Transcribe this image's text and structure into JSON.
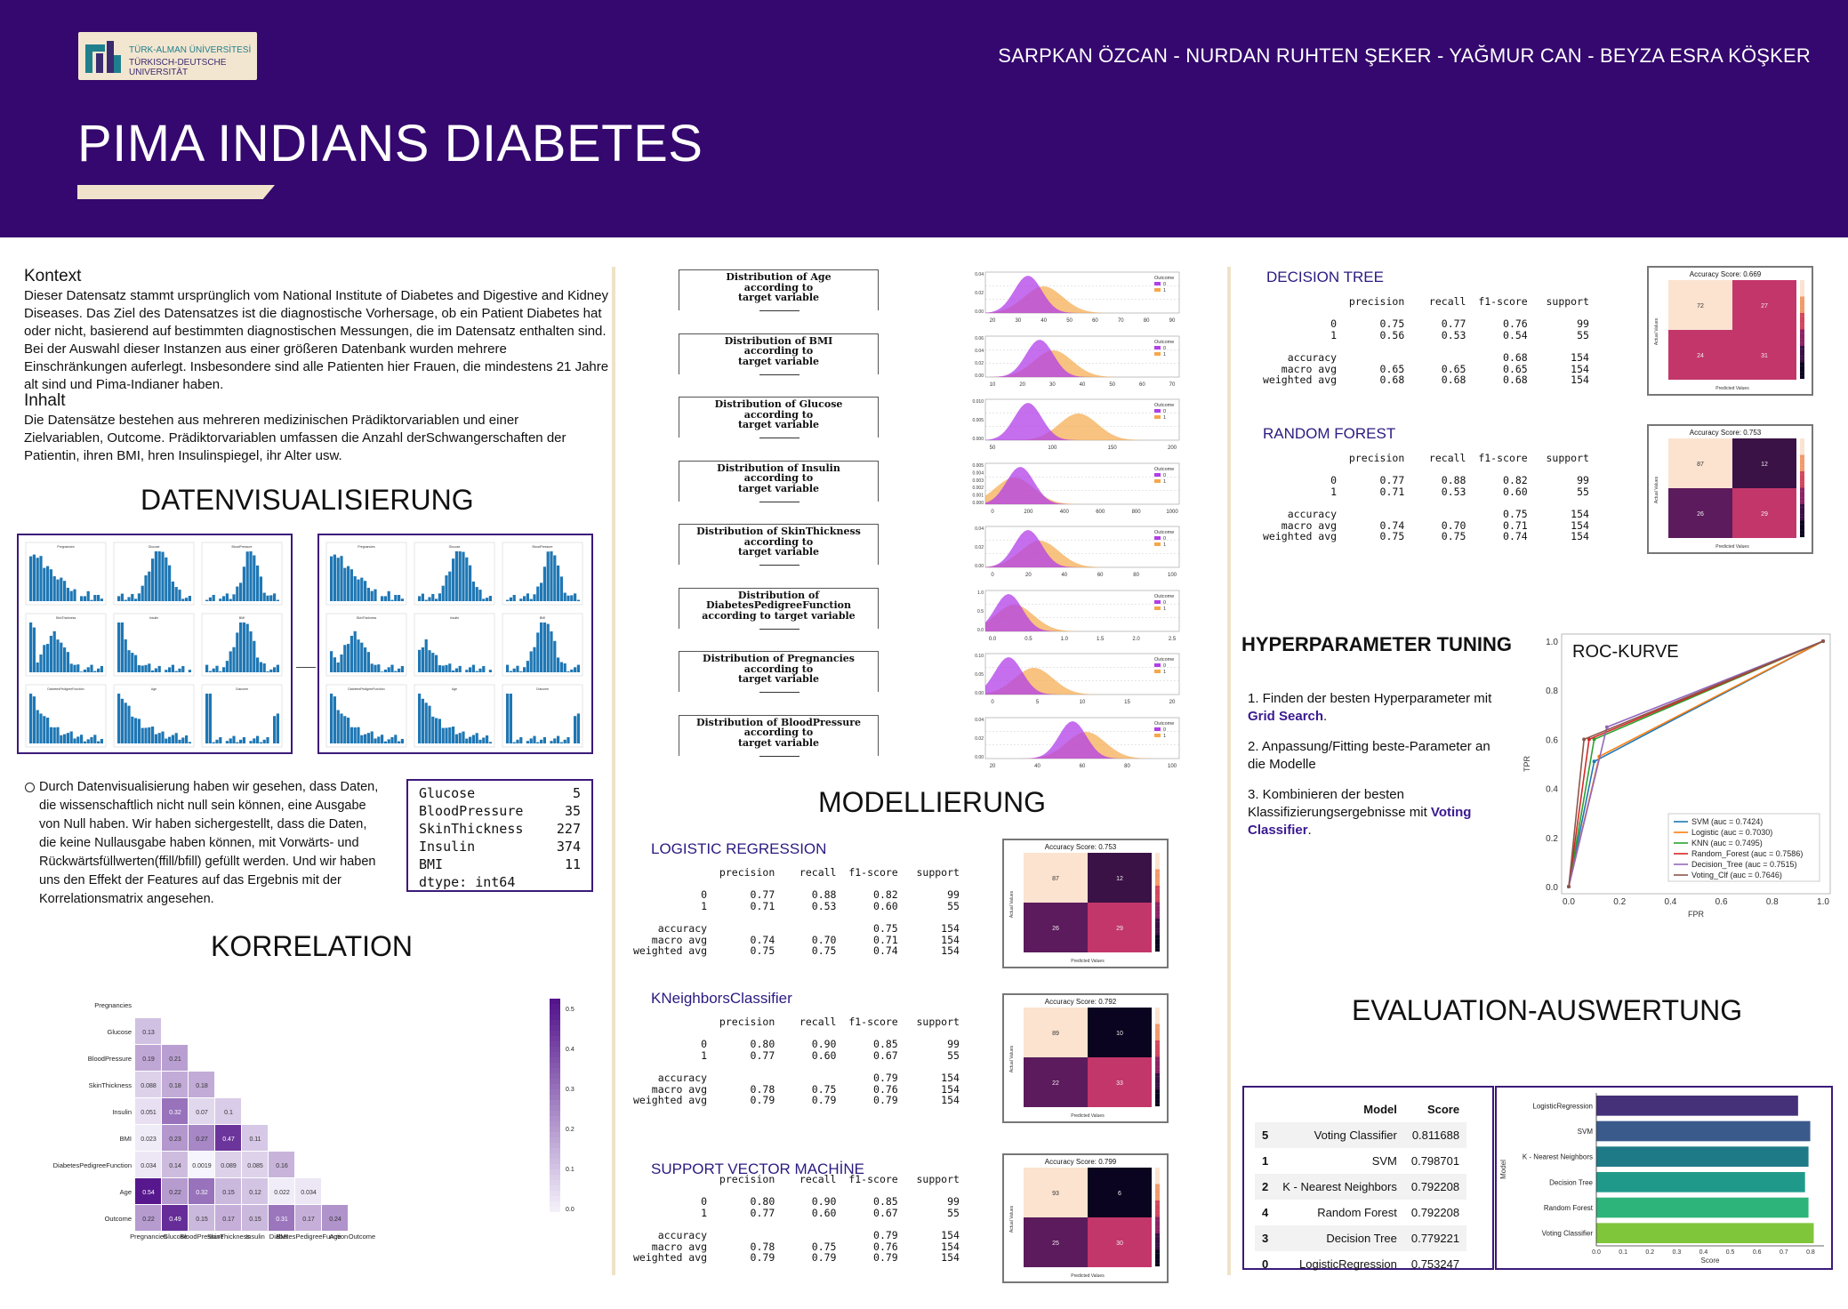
{
  "header": {
    "logo": {
      "line1": "TÜRK-ALMAN ÜNİVERSİTESİ",
      "line2": "TÜRKISCH-DEUTSCHE UNIVERSITÄT"
    },
    "authors": "SARPKAN ÖZCAN - NURDAN RUHTEN ŞEKER - YAĞMUR CAN - BEYZA ESRA KÖŞKER",
    "title": "PIMA INDIANS DIABETES"
  },
  "left": {
    "kontext_title": "Kontext",
    "kontext_text": "Dieser Datensatz stammt ursprünglich vom National Institute of Diabetes and Digestive and Kidney Diseases. Das Ziel des Datensatzes ist die diagnostische Vorhersage, ob ein Patient Diabetes hat oder nicht, basierend auf bestimmten diagnostischen Messungen, die im Datensatz enthalten sind. Bei der Auswahl dieser Instanzen aus einer größeren Datenbank wurden mehrere Einschränkungen auferlegt. Insbesondere sind alle Patienten hier Frauen, die mindestens 21 Jahre alt sind und Pima-Indianer haben.",
    "inhalt_title": "Inhalt",
    "inhalt_text": "Die Datensätze bestehen aus mehreren medizinischen Prädiktorvariablen und einer Zielvariablen, Outcome. Prädiktorvariablen umfassen die Anzahl derSchwangerschaften der Patientin, ihren BMI, hren Insulinspiegel, ihr Alter usw.",
    "datenvis_title": "DATENVISUALISIERUNG",
    "bullet_text": "Durch Datenvisualisierung haben wir gesehen, dass Daten, die wissenschaftlich nicht null sein können, eine Ausgabe von Null haben. Wir haben sichergestellt, dass die Daten, die keine Nullausgabe haben können, mit Vorwärts- und Rückwärtsfüllwerten(ffill/bfill) gefüllt werden. Und wir haben uns den Effekt der Features auf das Ergebnis mit der Korrelationsmatrix angesehen.",
    "nullcounts": [
      [
        "Glucose",
        "5"
      ],
      [
        "BloodPressure",
        "35"
      ],
      [
        "SkinThickness",
        "227"
      ],
      [
        "Insulin",
        "374"
      ],
      [
        "BMI",
        "11"
      ]
    ],
    "dtype": "dtype: int64",
    "korrelation_title": "KORRELATION"
  },
  "corr": {
    "labels": [
      "Pregnancies",
      "Glucose",
      "BloodPressure",
      "SkinThickness",
      "Insulin",
      "BMI",
      "DiabetesPedigreeFunction",
      "Age",
      "Outcome"
    ],
    "rows": [
      [],
      [
        "0.13"
      ],
      [
        "0.19",
        "0.21"
      ],
      [
        "0.088",
        "0.18",
        "0.18"
      ],
      [
        "0.051",
        "0.32",
        "0.07",
        "0.1"
      ],
      [
        "0.023",
        "0.23",
        "0.27",
        "0.47",
        "0.11"
      ],
      [
        "0.034",
        "0.14",
        "0.0019",
        "0.089",
        "0.085",
        "0.16"
      ],
      [
        "0.54",
        "0.22",
        "0.32",
        "0.15",
        "0.12",
        "0.022",
        "0.034"
      ],
      [
        "0.22",
        "0.49",
        "0.15",
        "0.17",
        "0.15",
        "0.31",
        "0.17",
        "0.24"
      ]
    ],
    "values": [
      [],
      [
        0.13
      ],
      [
        0.19,
        0.21
      ],
      [
        0.088,
        0.18,
        0.18
      ],
      [
        0.051,
        0.32,
        0.07,
        0.1
      ],
      [
        0.023,
        0.23,
        0.27,
        0.47,
        0.11
      ],
      [
        0.034,
        0.14,
        0.0019,
        0.089,
        0.085,
        0.16
      ],
      [
        0.54,
        0.22,
        0.32,
        0.15,
        0.12,
        0.022,
        0.034
      ],
      [
        0.22,
        0.49,
        0.15,
        0.17,
        0.15,
        0.31,
        0.17,
        0.24
      ]
    ],
    "colorbar_ticks": [
      "0.5",
      "0.4",
      "0.3",
      "0.2",
      "0.1",
      "0.0"
    ]
  },
  "hist_titles": [
    "Pregnancies",
    "Glucose",
    "BloodPressure",
    "SkinThickness",
    "Insulin",
    "BMI",
    "DiabetesPedigreeFunction",
    "Age",
    "Outcome"
  ],
  "distributions": [
    {
      "label": "Distribution of Age\naccording to\ntarget variable",
      "ticks": [
        "20",
        "30",
        "40",
        "50",
        "60",
        "70",
        "80",
        "90"
      ],
      "y": [
        "0.04",
        "0.02",
        "0.00"
      ]
    },
    {
      "label": "Distribution of BMI\naccording to\ntarget variable",
      "ticks": [
        "10",
        "20",
        "30",
        "40",
        "50",
        "60",
        "70"
      ],
      "y": [
        "0.06",
        "0.04",
        "0.02",
        "0.00"
      ]
    },
    {
      "label": "Distribution of Glucose\naccording to\ntarget variable",
      "ticks": [
        "50",
        "100",
        "150",
        "200"
      ],
      "y": [
        "0.010",
        "0.005",
        "0.000"
      ]
    },
    {
      "label": "Distribution of Insulin\naccording to\ntarget variable",
      "ticks": [
        "0",
        "200",
        "400",
        "600",
        "800",
        "1000"
      ],
      "y": [
        "0.005",
        "0.004",
        "0.003",
        "0.002",
        "0.001",
        "0.000"
      ]
    },
    {
      "label": "Distribution of SkinThickness\naccording to\ntarget variable",
      "ticks": [
        "0",
        "20",
        "40",
        "60",
        "80",
        "100"
      ],
      "y": [
        "0.04",
        "0.02",
        "0.00"
      ]
    },
    {
      "label": "Distribution of\nDiabetesPedigreeFunction\naccording to target variable",
      "ticks": [
        "0.0",
        "0.5",
        "1.0",
        "1.5",
        "2.0",
        "2.5"
      ],
      "y": [
        "1.0",
        "0.5",
        "0.0"
      ]
    },
    {
      "label": "Distribution of Pregnancies\naccording to\ntarget variable",
      "ticks": [
        "0",
        "5",
        "10",
        "15",
        "20"
      ],
      "y": [
        "0.10",
        "0.05",
        "0.00"
      ]
    },
    {
      "label": "Distribution of BloodPressure\naccording to\ntarget variable",
      "ticks": [
        "20",
        "40",
        "60",
        "80",
        "100"
      ],
      "y": [
        "0.04",
        "0.02",
        "0.00"
      ]
    }
  ],
  "legend": {
    "title": "Outcome",
    "a": "0",
    "b": "1"
  },
  "model": {
    "title": "MODELLIERUNG",
    "lr": {
      "name": "LOGISTIC REGRESSION",
      "report": "              precision    recall  f1-score   support\n\n           0       0.77      0.88      0.82        99\n           1       0.71      0.53      0.60        55\n\n    accuracy                           0.75       154\n   macro avg       0.74      0.70      0.71       154\nweighted avg       0.75      0.75      0.74       154",
      "acc": "Accuracy Score: 0.753",
      "cm": [
        "87",
        "12",
        "26",
        "29"
      ]
    },
    "knn": {
      "name": "KNeighborsClassifier",
      "report": "              precision    recall  f1-score   support\n\n           0       0.80      0.90      0.85        99\n           1       0.77      0.60      0.67        55\n\n    accuracy                           0.79       154\n   macro avg       0.78      0.75      0.76       154\nweighted avg       0.79      0.79      0.79       154",
      "acc": "Accuracy Score: 0.792",
      "cm": [
        "89",
        "10",
        "22",
        "33"
      ]
    },
    "svm": {
      "name": "SUPPORT VECTOR MACHİNE",
      "report": "              precision    recall  f1-score   support\n\n           0       0.80      0.90      0.85        99\n           1       0.77      0.60      0.67        55\n\n    accuracy                           0.79       154\n   macro avg       0.78      0.75      0.76       154\nweighted avg       0.79      0.79      0.79       154",
      "acc": "Accuracy Score: 0.799",
      "cm": [
        "93",
        "6",
        "25",
        "30"
      ]
    },
    "dt": {
      "name": "DECISION TREE",
      "report": "              precision    recall  f1-score   support\n\n           0       0.75      0.77      0.76        99\n           1       0.56      0.53      0.54        55\n\n    accuracy                           0.68       154\n   macro avg       0.65      0.65      0.65       154\nweighted avg       0.68      0.68      0.68       154",
      "acc": "Accuracy Score: 0.669",
      "cm": [
        "72",
        "27",
        "24",
        "31"
      ]
    },
    "rf": {
      "name": "RANDOM FOREST",
      "report": "              precision    recall  f1-score   support\n\n           0       0.77      0.88      0.82        99\n           1       0.71      0.53      0.60        55\n\n    accuracy                           0.75       154\n   macro avg       0.74      0.70      0.71       154\nweighted avg       0.75      0.75      0.74       154",
      "acc": "Accuracy Score: 0.753",
      "cm": [
        "87",
        "12",
        "26",
        "29"
      ]
    },
    "cm_xlabel": "Predicted Values",
    "cm_ylabel": "Actual Values"
  },
  "hyper": {
    "title": "HYPERPARAMETER TUNING",
    "s1a": "1. Finden der besten Hyperparameter mit",
    "s1b": "Grid Search",
    "s2a": "2. Anpassung/Fitting beste-Parameter an",
    "s2b": "die  Modelle",
    "s3a": "3. Kombinieren der besten",
    "s3b": "Klassifizierungsergebnisse  mit ",
    "s3c": "Voting Classifier"
  },
  "roc": {
    "title": "ROC-KURVE",
    "xlabel": "FPR",
    "ylabel": "TPR",
    "ticks": [
      "0.0",
      "0.2",
      "0.4",
      "0.6",
      "0.8",
      "1.0"
    ],
    "curves": [
      {
        "name": "SVM (auc = 0.7424)",
        "color": "#1f77b4",
        "pts": [
          [
            0,
            0
          ],
          [
            0.1,
            0.51
          ],
          [
            1,
            1
          ]
        ]
      },
      {
        "name": "Logistic (auc = 0.7030)",
        "color": "#ff7f0e",
        "pts": [
          [
            0,
            0
          ],
          [
            0.12,
            0.53
          ],
          [
            1,
            1
          ]
        ]
      },
      {
        "name": "KNN (auc = 0.7495)",
        "color": "#2ca02c",
        "pts": [
          [
            0,
            0
          ],
          [
            0.1,
            0.6
          ],
          [
            1,
            1
          ]
        ]
      },
      {
        "name": "Random_Forest (auc = 0.7586)",
        "color": "#d62728",
        "pts": [
          [
            0,
            0
          ],
          [
            0.08,
            0.6
          ],
          [
            1,
            1
          ]
        ]
      },
      {
        "name": "Decision_Tree (auc = 0.7515)",
        "color": "#9467bd",
        "pts": [
          [
            0,
            0
          ],
          [
            0.15,
            0.65
          ],
          [
            1,
            1
          ]
        ]
      },
      {
        "name": "Voting_Clf (auc = 0.7646)",
        "color": "#8c564b",
        "pts": [
          [
            0,
            0
          ],
          [
            0.06,
            0.6
          ],
          [
            1,
            1
          ]
        ]
      }
    ]
  },
  "eval": {
    "title": "EVALUATION-AUSWERTUNG",
    "head_model": "Model",
    "head_score": "Score",
    "rows": [
      [
        "5",
        "Voting Classifier",
        "0.811688"
      ],
      [
        "1",
        "SVM",
        "0.798701"
      ],
      [
        "2",
        "K - Nearest Neighbors",
        "0.792208"
      ],
      [
        "4",
        "Random Forest",
        "0.792208"
      ],
      [
        "3",
        "Decision Tree",
        "0.779221"
      ],
      [
        "0",
        "LogisticRegression",
        "0.753247"
      ]
    ]
  },
  "chart_data": {
    "type": "bar",
    "categories": [
      "LogisticRegression",
      "SVM",
      "K - Nearest Neighbors",
      "Decision Tree",
      "Random Forest",
      "Voting Classifier"
    ],
    "values": [
      0.753247,
      0.798701,
      0.792208,
      0.779221,
      0.792208,
      0.811688
    ],
    "colors": [
      "#45307a",
      "#3a5a8c",
      "#1f7a88",
      "#1f9a8a",
      "#2db47a",
      "#7fc63a"
    ],
    "xlabel": "Score",
    "ylabel": "Model",
    "xticks": [
      "0.0",
      "0.1",
      "0.2",
      "0.3",
      "0.4",
      "0.5",
      "0.6",
      "0.7",
      "0.8"
    ],
    "xlim": [
      0,
      0.85
    ]
  }
}
